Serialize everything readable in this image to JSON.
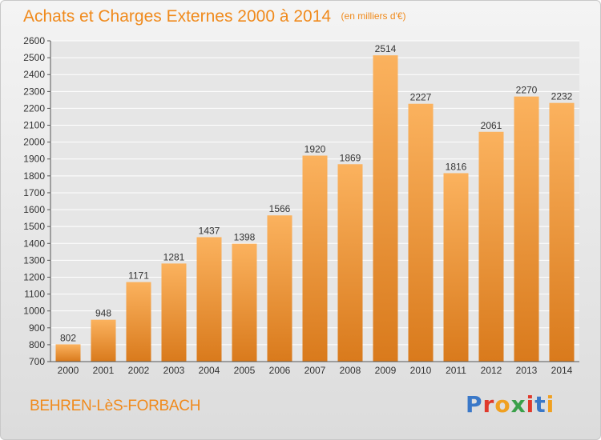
{
  "header": {
    "title": "Achats et Charges Externes 2000 à 2014",
    "unit": "(en milliers d'€)"
  },
  "footer": {
    "place": "BEHREN-LèS-FORBACH",
    "brand": "Proxiti",
    "brand_colors": [
      "#3a78c8",
      "#e0392b",
      "#f0a020",
      "#3aa04a",
      "#e0392b",
      "#3a78c8",
      "#f0a020"
    ]
  },
  "colors": {
    "bar_light": "#fbb25e",
    "bar_dark": "#d97a1c",
    "accent": "#f08a1c",
    "grid": "#ffffff"
  },
  "chart_data": {
    "type": "bar",
    "title": "Achats et Charges Externes 2000 à 2014",
    "categories": [
      "2000",
      "2001",
      "2002",
      "2003",
      "2004",
      "2005",
      "2006",
      "2007",
      "2008",
      "2009",
      "2010",
      "2011",
      "2012",
      "2013",
      "2014"
    ],
    "values": [
      802,
      948,
      1171,
      1281,
      1437,
      1398,
      1566,
      1920,
      1869,
      2514,
      2227,
      1816,
      2061,
      2270,
      2232
    ],
    "ylim": [
      700,
      2600
    ],
    "yticks": [
      700,
      800,
      900,
      1000,
      1100,
      1200,
      1300,
      1400,
      1500,
      1600,
      1700,
      1800,
      1900,
      2000,
      2100,
      2200,
      2300,
      2400,
      2500,
      2600
    ],
    "grid": true,
    "data_labels": true
  }
}
